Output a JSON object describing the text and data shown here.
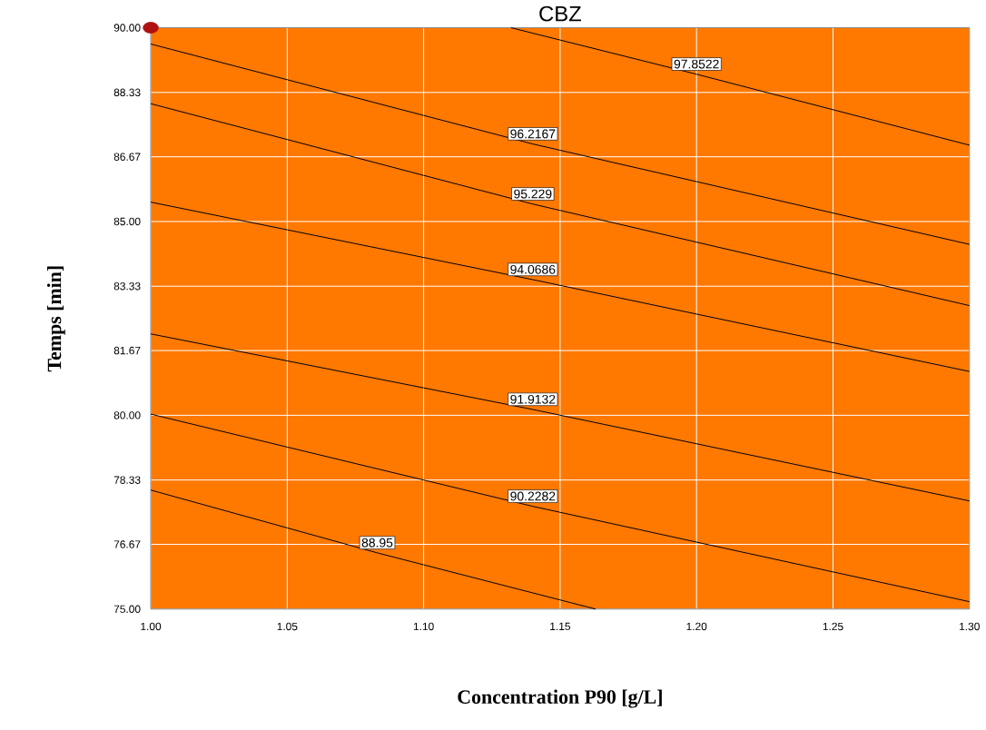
{
  "chart_data": {
    "type": "line",
    "title": "CBZ",
    "xlabel": "Concentration P90 [g/L]",
    "ylabel": "Temps [min]",
    "xlim": [
      1.0,
      1.3
    ],
    "ylim": [
      75,
      90
    ],
    "xticks": [
      {
        "value": 1.0,
        "label": "1.00"
      },
      {
        "value": 1.05,
        "label": "1.05"
      },
      {
        "value": 1.1,
        "label": "1.10"
      },
      {
        "value": 1.15,
        "label": "1.15"
      },
      {
        "value": 1.2,
        "label": "1.20"
      },
      {
        "value": 1.25,
        "label": "1.25"
      },
      {
        "value": 1.3,
        "label": "1.30"
      }
    ],
    "yticks": [
      {
        "value": 75,
        "label": "75.00"
      },
      {
        "value": 76.67,
        "label": "76.67"
      },
      {
        "value": 78.33,
        "label": "78.33"
      },
      {
        "value": 80,
        "label": "80.00"
      },
      {
        "value": 81.67,
        "label": "81.67"
      },
      {
        "value": 83.33,
        "label": "83.33"
      },
      {
        "value": 85,
        "label": "85.00"
      },
      {
        "value": 86.67,
        "label": "86.67"
      },
      {
        "value": 88.33,
        "label": "88.33"
      },
      {
        "value": 90,
        "label": "90.00"
      }
    ],
    "grid": true,
    "marker": "none",
    "line_style": "solid",
    "series": [
      {
        "name": "97.8522",
        "color": "#000000",
        "x": [
          1.132,
          1.2,
          1.3
        ],
        "values": [
          90,
          88.8,
          86.97
        ]
      },
      {
        "name": "96.2167",
        "color": "#000000",
        "x": [
          1.0,
          1.14,
          1.3
        ],
        "values": [
          89.58,
          87.0,
          84.41
        ]
      },
      {
        "name": "95.229",
        "color": "#000000",
        "x": [
          1.0,
          1.14,
          1.3
        ],
        "values": [
          88.04,
          85.45,
          82.83
        ]
      },
      {
        "name": "94.0686",
        "color": "#000000",
        "x": [
          1.0,
          1.14,
          1.3
        ],
        "values": [
          85.5,
          83.5,
          81.13
        ]
      },
      {
        "name": "91.9132",
        "color": "#000000",
        "x": [
          1.0,
          1.14,
          1.3
        ],
        "values": [
          82.1,
          80.15,
          77.79
        ]
      },
      {
        "name": "90.2282",
        "color": "#000000",
        "x": [
          1.0,
          1.14,
          1.3
        ],
        "values": [
          80.03,
          77.65,
          75.19
        ]
      },
      {
        "name": "88.95",
        "color": "#000000",
        "x": [
          1.0,
          1.083,
          1.163
        ],
        "values": [
          78.07,
          76.45,
          75
        ]
      },
      {
        "type": "scatter",
        "color": "#b01010",
        "marker": "circle",
        "x": [
          1.0
        ],
        "values": [
          90
        ]
      }
    ]
  }
}
